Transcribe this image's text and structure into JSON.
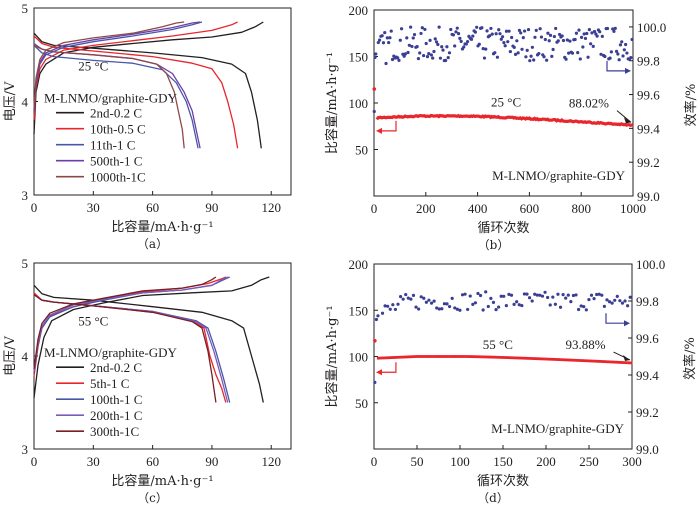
{
  "chart_data": [
    {
      "id": "a",
      "type": "line",
      "caption": "（a）",
      "xlabel": "比容量/mA·h·g⁻¹",
      "ylabel": "电压/V",
      "xlim": [
        0,
        130
      ],
      "ylim": [
        3,
        5
      ],
      "xticks": [
        0,
        30,
        60,
        90,
        120
      ],
      "yticks": [
        3,
        4,
        5
      ],
      "temperature_label": "25 °C",
      "system_label": "M-LNMO/graphite-GDY",
      "legend_position": "center-left",
      "series": [
        {
          "name": "2nd-0.2 C",
          "color": "#231f20",
          "charge": [
            [
              0,
              3.65
            ],
            [
              1,
              4.1
            ],
            [
              3,
              4.3
            ],
            [
              6,
              4.4
            ],
            [
              15,
              4.52
            ],
            [
              30,
              4.58
            ],
            [
              50,
              4.62
            ],
            [
              70,
              4.66
            ],
            [
              90,
              4.69
            ],
            [
              105,
              4.74
            ],
            [
              112,
              4.8
            ],
            [
              116,
              4.85
            ]
          ],
          "discharge": [
            [
              0,
              4.73
            ],
            [
              4,
              4.64
            ],
            [
              10,
              4.6
            ],
            [
              30,
              4.57
            ],
            [
              60,
              4.52
            ],
            [
              85,
              4.47
            ],
            [
              100,
              4.4
            ],
            [
              107,
              4.3
            ],
            [
              110,
              4.1
            ],
            [
              113,
              3.8
            ],
            [
              115,
              3.5
            ]
          ]
        },
        {
          "name": "10th-0.5 C",
          "color": "#e8262b",
          "charge": [
            [
              0,
              3.8
            ],
            [
              1,
              4.15
            ],
            [
              3,
              4.35
            ],
            [
              6,
              4.45
            ],
            [
              15,
              4.55
            ],
            [
              30,
              4.6
            ],
            [
              50,
              4.65
            ],
            [
              70,
              4.7
            ],
            [
              90,
              4.76
            ],
            [
              100,
              4.82
            ],
            [
              103,
              4.85
            ]
          ],
          "discharge": [
            [
              0,
              4.7
            ],
            [
              4,
              4.62
            ],
            [
              10,
              4.58
            ],
            [
              30,
              4.54
            ],
            [
              60,
              4.48
            ],
            [
              80,
              4.41
            ],
            [
              90,
              4.35
            ],
            [
              95,
              4.2
            ],
            [
              98,
              4.0
            ],
            [
              101,
              3.75
            ],
            [
              103,
              3.5
            ]
          ]
        },
        {
          "name": "11th-1 C",
          "color": "#4a56a8",
          "charge": [
            [
              0,
              3.9
            ],
            [
              1,
              4.2
            ],
            [
              3,
              4.4
            ],
            [
              6,
              4.5
            ],
            [
              15,
              4.58
            ],
            [
              30,
              4.64
            ],
            [
              50,
              4.7
            ],
            [
              70,
              4.77
            ],
            [
              80,
              4.82
            ],
            [
              85,
              4.85
            ]
          ],
          "discharge": [
            [
              0,
              4.6
            ],
            [
              4,
              4.52
            ],
            [
              10,
              4.48
            ],
            [
              30,
              4.44
            ],
            [
              50,
              4.41
            ],
            [
              65,
              4.34
            ],
            [
              72,
              4.2
            ],
            [
              77,
              4.0
            ],
            [
              80,
              3.8
            ],
            [
              82,
              3.6
            ],
            [
              83,
              3.5
            ]
          ]
        },
        {
          "name": "500th-1 C",
          "color": "#6b3fa8",
          "charge": [
            [
              0,
              3.9
            ],
            [
              1,
              4.2
            ],
            [
              3,
              4.42
            ],
            [
              6,
              4.52
            ],
            [
              15,
              4.6
            ],
            [
              30,
              4.66
            ],
            [
              50,
              4.72
            ],
            [
              70,
              4.79
            ],
            [
              80,
              4.84
            ],
            [
              84,
              4.85
            ]
          ],
          "discharge": [
            [
              0,
              4.62
            ],
            [
              4,
              4.56
            ],
            [
              10,
              4.53
            ],
            [
              30,
              4.5
            ],
            [
              50,
              4.46
            ],
            [
              62,
              4.4
            ],
            [
              70,
              4.3
            ],
            [
              76,
              4.1
            ],
            [
              80,
              3.9
            ],
            [
              82,
              3.7
            ],
            [
              84,
              3.5
            ]
          ]
        },
        {
          "name": "1000th-1C",
          "color": "#8b4a4a",
          "charge": [
            [
              0,
              3.92
            ],
            [
              1,
              4.25
            ],
            [
              3,
              4.45
            ],
            [
              6,
              4.55
            ],
            [
              15,
              4.63
            ],
            [
              30,
              4.68
            ],
            [
              50,
              4.73
            ],
            [
              65,
              4.8
            ],
            [
              72,
              4.84
            ],
            [
              76,
              4.85
            ]
          ],
          "discharge": [
            [
              0,
              4.6
            ],
            [
              4,
              4.56
            ],
            [
              10,
              4.53
            ],
            [
              30,
              4.5
            ],
            [
              50,
              4.46
            ],
            [
              62,
              4.4
            ],
            [
              67,
              4.3
            ],
            [
              71,
              4.1
            ],
            [
              73,
              3.9
            ],
            [
              75,
              3.7
            ],
            [
              76,
              3.5
            ]
          ]
        }
      ]
    },
    {
      "id": "b",
      "type": "scatter",
      "caption": "（b）",
      "xlabel": "循环次数",
      "ylabel": "比容量/mA·h·g⁻¹",
      "y2label": "效率/%",
      "xlim": [
        0,
        1000
      ],
      "ylim": [
        0,
        200
      ],
      "y2lim": [
        99.0,
        100.1
      ],
      "xticks": [
        0,
        200,
        400,
        600,
        800,
        1000
      ],
      "yticks": [
        50,
        100,
        150,
        200
      ],
      "y2ticks": [
        "99.0",
        "99.2",
        "99.4",
        "99.6",
        "99.8",
        "100.0"
      ],
      "temperature_label": "25 °C",
      "system_label": "M-LNMO/graphite-GDY",
      "retention_label": "88.02%",
      "capacity": {
        "color": "#e8262b",
        "first_cycle": 115,
        "start": 84,
        "peak": 86,
        "end": 76,
        "n_cycles": 1000
      },
      "efficiency": {
        "color": "#3a3f93",
        "first_cycles": [
          99.5,
          99.82,
          99.84
        ],
        "mean": 99.9,
        "spread": 0.1,
        "n_points": 200
      }
    },
    {
      "id": "c",
      "type": "line",
      "caption": "（c）",
      "xlabel": "比容量/mA·h·g⁻¹",
      "ylabel": "电压/V",
      "xlim": [
        0,
        130
      ],
      "ylim": [
        3,
        5
      ],
      "xticks": [
        0,
        30,
        60,
        90,
        120
      ],
      "yticks": [
        3,
        4,
        5
      ],
      "temperature_label": "55 °C",
      "system_label": "M-LNMO/graphite-GDY",
      "legend_position": "center-left",
      "series": [
        {
          "name": "2nd-0.2 C",
          "color": "#231f20",
          "charge": [
            [
              0,
              3.55
            ],
            [
              2,
              3.9
            ],
            [
              5,
              4.2
            ],
            [
              9,
              4.38
            ],
            [
              20,
              4.5
            ],
            [
              35,
              4.57
            ],
            [
              55,
              4.65
            ],
            [
              80,
              4.68
            ],
            [
              100,
              4.7
            ],
            [
              110,
              4.76
            ],
            [
              115,
              4.82
            ],
            [
              119,
              4.85
            ]
          ],
          "discharge": [
            [
              0,
              4.76
            ],
            [
              4,
              4.67
            ],
            [
              10,
              4.63
            ],
            [
              30,
              4.6
            ],
            [
              60,
              4.53
            ],
            [
              85,
              4.47
            ],
            [
              100,
              4.38
            ],
            [
              106,
              4.3
            ],
            [
              110,
              4.0
            ],
            [
              114,
              3.7
            ],
            [
              116,
              3.5
            ]
          ]
        },
        {
          "name": "5th-1 C",
          "color": "#e8262b",
          "charge": [
            [
              0,
              3.78
            ],
            [
              2,
              4.1
            ],
            [
              4,
              4.3
            ],
            [
              8,
              4.43
            ],
            [
              20,
              4.53
            ],
            [
              35,
              4.61
            ],
            [
              55,
              4.69
            ],
            [
              75,
              4.73
            ],
            [
              88,
              4.78
            ],
            [
              95,
              4.83
            ],
            [
              97,
              4.85
            ]
          ],
          "discharge": [
            [
              0,
              4.68
            ],
            [
              4,
              4.6
            ],
            [
              10,
              4.58
            ],
            [
              30,
              4.54
            ],
            [
              60,
              4.47
            ],
            [
              80,
              4.38
            ],
            [
              86,
              4.3
            ],
            [
              89,
              4.0
            ],
            [
              92,
              3.8
            ],
            [
              95,
              3.65
            ],
            [
              97,
              3.5
            ]
          ]
        },
        {
          "name": "100th-1 C",
          "color": "#4a56a8",
          "charge": [
            [
              0,
              3.82
            ],
            [
              2,
              4.12
            ],
            [
              4,
              4.3
            ],
            [
              8,
              4.42
            ],
            [
              20,
              4.53
            ],
            [
              35,
              4.6
            ],
            [
              55,
              4.68
            ],
            [
              75,
              4.71
            ],
            [
              90,
              4.76
            ],
            [
              96,
              4.82
            ],
            [
              99,
              4.85
            ]
          ],
          "discharge": [
            [
              0,
              4.66
            ],
            [
              4,
              4.6
            ],
            [
              10,
              4.58
            ],
            [
              30,
              4.54
            ],
            [
              60,
              4.48
            ],
            [
              82,
              4.38
            ],
            [
              88,
              4.3
            ],
            [
              92,
              4.05
            ],
            [
              96,
              3.75
            ],
            [
              99,
              3.5
            ]
          ]
        },
        {
          "name": "200th-1 C",
          "color": "#7a5cb8",
          "charge": [
            [
              0,
              3.84
            ],
            [
              2,
              4.15
            ],
            [
              4,
              4.32
            ],
            [
              8,
              4.44
            ],
            [
              20,
              4.55
            ],
            [
              35,
              4.61
            ],
            [
              55,
              4.68
            ],
            [
              75,
              4.71
            ],
            [
              90,
              4.76
            ],
            [
              95,
              4.82
            ],
            [
              98,
              4.85
            ]
          ],
          "discharge": [
            [
              0,
              4.66
            ],
            [
              4,
              4.6
            ],
            [
              10,
              4.58
            ],
            [
              30,
              4.54
            ],
            [
              60,
              4.48
            ],
            [
              82,
              4.37
            ],
            [
              87,
              4.3
            ],
            [
              91,
              4.05
            ],
            [
              95,
              3.75
            ],
            [
              98,
              3.5
            ]
          ]
        },
        {
          "name": "300th-1C",
          "color": "#7a1e24",
          "charge": [
            [
              0,
              3.86
            ],
            [
              2,
              4.18
            ],
            [
              4,
              4.35
            ],
            [
              8,
              4.46
            ],
            [
              20,
              4.56
            ],
            [
              35,
              4.62
            ],
            [
              55,
              4.7
            ],
            [
              75,
              4.73
            ],
            [
              85,
              4.77
            ],
            [
              90,
              4.82
            ],
            [
              92,
              4.85
            ]
          ],
          "discharge": [
            [
              0,
              4.66
            ],
            [
              4,
              4.6
            ],
            [
              10,
              4.58
            ],
            [
              30,
              4.54
            ],
            [
              60,
              4.47
            ],
            [
              80,
              4.37
            ],
            [
              85,
              4.3
            ],
            [
              88,
              4.05
            ],
            [
              90,
              3.8
            ],
            [
              91,
              3.65
            ],
            [
              92,
              3.5
            ]
          ]
        }
      ]
    },
    {
      "id": "d",
      "type": "scatter",
      "caption": "（d）",
      "xlabel": "循环次数",
      "ylabel": "比容量/mA·h·g⁻¹",
      "y2label": "效率/%",
      "xlim": [
        0,
        300
      ],
      "ylim": [
        0,
        200
      ],
      "y2lim": [
        99.0,
        100.0
      ],
      "xticks": [
        0,
        50,
        100,
        150,
        200,
        250,
        300
      ],
      "yticks": [
        50,
        100,
        150,
        200
      ],
      "y2ticks": [
        "99.0",
        "99.2",
        "99.4",
        "99.6",
        "99.8",
        "100.0"
      ],
      "temperature_label": "55 °C",
      "system_label": "M-LNMO/graphite-GDY",
      "retention_label": "93.88%",
      "capacity": {
        "color": "#e8262b",
        "first_cycle": 117,
        "start": 98,
        "peak": 100,
        "end": 93,
        "n_cycles": 300
      },
      "efficiency": {
        "color": "#3a3f93",
        "first_cycles": [
          99.36,
          99.7,
          99.72
        ],
        "mean": 99.8,
        "spread": 0.05,
        "n_points": 100
      }
    }
  ]
}
